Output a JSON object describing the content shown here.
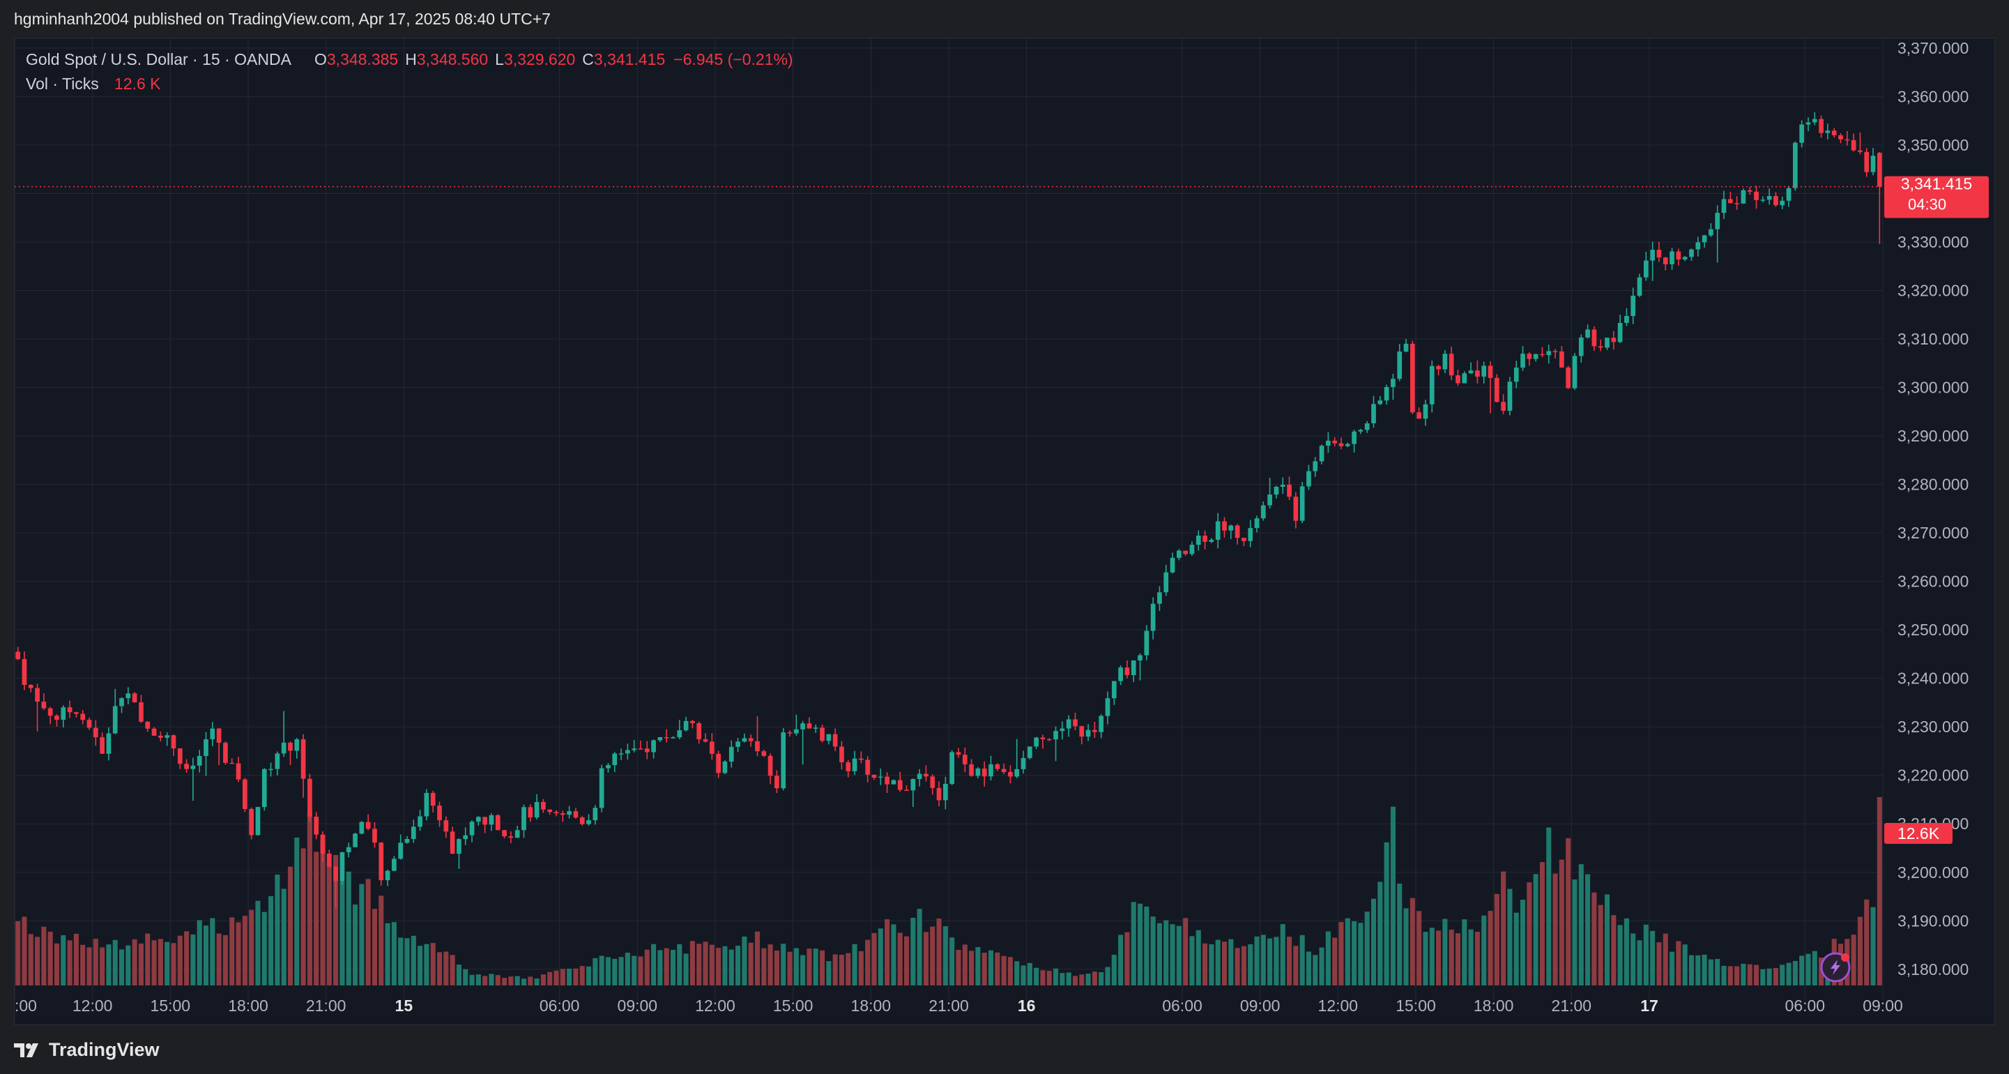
{
  "header": {
    "published_text": "hgminhanh2004 published on TradingView.com, Apr 17, 2025 08:40 UTC+7"
  },
  "legend": {
    "symbol": "Gold Spot / U.S. Dollar · 15 · OANDA",
    "o_label": "O",
    "o_value": "3,348.385",
    "h_label": "H",
    "h_value": "3,348.560",
    "l_label": "L",
    "l_value": "3,329.620",
    "c_label": "C",
    "c_value": "3,341.415",
    "change": "−6.945 (−0.21%)",
    "vol_label": "Vol · Ticks",
    "vol_value": "12.6 K"
  },
  "price_badge": {
    "price": "3,341.415",
    "countdown": "04:30"
  },
  "volume_badge": "12.6K",
  "footer": {
    "brand": "TradingView"
  },
  "colors": {
    "up": "#22ab94",
    "down": "#f23645",
    "up_volume": "#1f7a6c",
    "down_volume": "#8e3b41",
    "background": "#141823",
    "grid": "#252935"
  },
  "chart_data": {
    "type": "candlestick",
    "title": "Gold Spot / U.S. Dollar · 15 · OANDA",
    "interval": "15",
    "y_ticks": [
      3180,
      3190,
      3200,
      3210,
      3220,
      3230,
      3240,
      3250,
      3260,
      3270,
      3280,
      3290,
      3300,
      3310,
      3320,
      3330,
      3340,
      3350,
      3360,
      3370
    ],
    "y_tick_labels": [
      "3,180.000",
      "3,190.000",
      "3,200.000",
      "3,210.000",
      "3,220.000",
      "3,230.000",
      "3,240.000",
      "3,250.000",
      "3,260.000",
      "3,270.000",
      "3,280.000",
      "3,290.000",
      "3,300.000",
      "3,310.000",
      "3,320.000",
      "3,330.000",
      "",
      "3,350.000",
      "3,360.000",
      "3,370.000"
    ],
    "ylim": [
      3173.5,
      3372
    ],
    "xlim": [
      0,
      287
    ],
    "x_ticks": [
      {
        "bar": 0,
        "label": ":00",
        "bold": false
      },
      {
        "bar": 12,
        "label": "12:00",
        "bold": false
      },
      {
        "bar": 24,
        "label": "15:00",
        "bold": false
      },
      {
        "bar": 36,
        "label": "18:00",
        "bold": false
      },
      {
        "bar": 48,
        "label": "21:00",
        "bold": false
      },
      {
        "bar": 60,
        "label": "15",
        "bold": true
      },
      {
        "bar": 84,
        "label": "06:00",
        "bold": false
      },
      {
        "bar": 96,
        "label": "09:00",
        "bold": false
      },
      {
        "bar": 108,
        "label": "12:00",
        "bold": false
      },
      {
        "bar": 120,
        "label": "15:00",
        "bold": false
      },
      {
        "bar": 132,
        "label": "18:00",
        "bold": false
      },
      {
        "bar": 144,
        "label": "21:00",
        "bold": false
      },
      {
        "bar": 156,
        "label": "16",
        "bold": true
      },
      {
        "bar": 180,
        "label": "06:00",
        "bold": false
      },
      {
        "bar": 192,
        "label": "09:00",
        "bold": false
      },
      {
        "bar": 204,
        "label": "12:00",
        "bold": false
      },
      {
        "bar": 216,
        "label": "15:00",
        "bold": false
      },
      {
        "bar": 228,
        "label": "18:00",
        "bold": false
      },
      {
        "bar": 240,
        "label": "21:00",
        "bold": false
      },
      {
        "bar": 252,
        "label": "17",
        "bold": true
      },
      {
        "bar": 276,
        "label": "06:00",
        "bold": false
      },
      {
        "bar": 288,
        "label": "09:00",
        "bold": false
      }
    ],
    "last_price": 3341.415,
    "volume_max_ticks": 12600,
    "close_path": [
      [
        0,
        3244
      ],
      [
        1,
        3240
      ],
      [
        3,
        3235
      ],
      [
        6,
        3232
      ],
      [
        9,
        3234
      ],
      [
        11,
        3230
      ],
      [
        13,
        3224
      ],
      [
        15,
        3234
      ],
      [
        17,
        3238
      ],
      [
        19,
        3230
      ],
      [
        22,
        3229
      ],
      [
        24,
        3226
      ],
      [
        26,
        3220
      ],
      [
        28,
        3224
      ],
      [
        30,
        3230
      ],
      [
        32,
        3222
      ],
      [
        34,
        3220
      ],
      [
        35,
        3212
      ],
      [
        36,
        3209
      ],
      [
        37,
        3214
      ],
      [
        38,
        3220
      ],
      [
        40,
        3225
      ],
      [
        42,
        3226
      ],
      [
        43,
        3228
      ],
      [
        44,
        3220
      ],
      [
        45,
        3212
      ],
      [
        46,
        3207
      ],
      [
        47,
        3205
      ],
      [
        48,
        3200
      ],
      [
        49,
        3199
      ],
      [
        50,
        3204
      ],
      [
        51,
        3206
      ],
      [
        52,
        3208
      ],
      [
        53,
        3210
      ],
      [
        55,
        3205
      ],
      [
        56,
        3198
      ],
      [
        57,
        3200
      ],
      [
        58,
        3204
      ],
      [
        60,
        3208
      ],
      [
        62,
        3212
      ],
      [
        63,
        3216
      ],
      [
        64,
        3214
      ],
      [
        66,
        3210
      ],
      [
        67,
        3204
      ],
      [
        69,
        3208
      ],
      [
        71,
        3211
      ],
      [
        74,
        3210
      ],
      [
        76,
        3208
      ],
      [
        78,
        3212
      ],
      [
        80,
        3213
      ],
      [
        82,
        3211
      ],
      [
        85,
        3212
      ],
      [
        87,
        3211
      ],
      [
        89,
        3213
      ],
      [
        90,
        3220
      ],
      [
        92,
        3224
      ],
      [
        95,
        3224
      ],
      [
        97,
        3226
      ],
      [
        100,
        3228
      ],
      [
        102,
        3229
      ],
      [
        104,
        3231
      ],
      [
        106,
        3226
      ],
      [
        108,
        3222
      ],
      [
        110,
        3225
      ],
      [
        112,
        3227
      ],
      [
        114,
        3225
      ],
      [
        116,
        3220
      ],
      [
        117,
        3218
      ],
      [
        118,
        3228
      ],
      [
        120,
        3231
      ],
      [
        122,
        3229
      ],
      [
        124,
        3228
      ],
      [
        126,
        3226
      ],
      [
        128,
        3222
      ],
      [
        130,
        3222
      ],
      [
        132,
        3220
      ],
      [
        134,
        3219
      ],
      [
        136,
        3218
      ],
      [
        138,
        3218
      ],
      [
        140,
        3220
      ],
      [
        141,
        3216
      ],
      [
        142,
        3214
      ],
      [
        143,
        3219
      ],
      [
        144,
        3224
      ],
      [
        146,
        3222
      ],
      [
        148,
        3220
      ],
      [
        150,
        3221
      ],
      [
        152,
        3220
      ],
      [
        154,
        3222
      ],
      [
        156,
        3226
      ],
      [
        158,
        3229
      ],
      [
        160,
        3228
      ],
      [
        162,
        3230
      ],
      [
        164,
        3229
      ],
      [
        166,
        3228
      ],
      [
        168,
        3236
      ],
      [
        170,
        3241
      ],
      [
        172,
        3243
      ],
      [
        174,
        3249
      ],
      [
        176,
        3259
      ],
      [
        178,
        3264
      ],
      [
        180,
        3266
      ],
      [
        182,
        3269
      ],
      [
        184,
        3270
      ],
      [
        186,
        3272
      ],
      [
        188,
        3270
      ],
      [
        189,
        3267
      ],
      [
        190,
        3272
      ],
      [
        192,
        3275
      ],
      [
        194,
        3280
      ],
      [
        196,
        3278
      ],
      [
        197,
        3272
      ],
      [
        198,
        3280
      ],
      [
        200,
        3286
      ],
      [
        202,
        3288
      ],
      [
        204,
        3289
      ],
      [
        206,
        3290
      ],
      [
        208,
        3293
      ],
      [
        210,
        3297
      ],
      [
        212,
        3303
      ],
      [
        214,
        3310
      ],
      [
        215,
        3296
      ],
      [
        216,
        3292
      ],
      [
        218,
        3304
      ],
      [
        220,
        3306
      ],
      [
        222,
        3302
      ],
      [
        224,
        3304
      ],
      [
        226,
        3303
      ],
      [
        228,
        3298
      ],
      [
        229,
        3294
      ],
      [
        230,
        3300
      ],
      [
        232,
        3308
      ],
      [
        234,
        3306
      ],
      [
        236,
        3308
      ],
      [
        238,
        3304
      ],
      [
        239,
        3300
      ],
      [
        240,
        3308
      ],
      [
        242,
        3312
      ],
      [
        244,
        3308
      ],
      [
        246,
        3310
      ],
      [
        248,
        3316
      ],
      [
        250,
        3324
      ],
      [
        252,
        3330
      ],
      [
        254,
        3326
      ],
      [
        256,
        3328
      ],
      [
        258,
        3328
      ],
      [
        260,
        3330
      ],
      [
        262,
        3336
      ],
      [
        264,
        3339
      ],
      [
        266,
        3340
      ],
      [
        268,
        3340
      ],
      [
        270,
        3338
      ],
      [
        272,
        3340
      ],
      [
        273,
        3342
      ],
      [
        274,
        3349
      ],
      [
        275,
        3354
      ],
      [
        276,
        3355
      ],
      [
        278,
        3354
      ],
      [
        280,
        3352
      ],
      [
        282,
        3351
      ],
      [
        283,
        3350
      ],
      [
        284,
        3348
      ],
      [
        285,
        3346
      ],
      [
        286,
        3349
      ],
      [
        287,
        3341.4
      ]
    ],
    "volume_path": [
      [
        0,
        0.34
      ],
      [
        10,
        0.22
      ],
      [
        25,
        0.26
      ],
      [
        35,
        0.36
      ],
      [
        40,
        0.56
      ],
      [
        44,
        0.78
      ],
      [
        46,
        0.85
      ],
      [
        50,
        0.6
      ],
      [
        55,
        0.44
      ],
      [
        60,
        0.26
      ],
      [
        66,
        0.18
      ],
      [
        70,
        0.06
      ],
      [
        80,
        0.04
      ],
      [
        88,
        0.12
      ],
      [
        100,
        0.21
      ],
      [
        110,
        0.19
      ],
      [
        112,
        0.27
      ],
      [
        120,
        0.2
      ],
      [
        126,
        0.14
      ],
      [
        131,
        0.22
      ],
      [
        134,
        0.3
      ],
      [
        138,
        0.33
      ],
      [
        141,
        0.36
      ],
      [
        144,
        0.25
      ],
      [
        150,
        0.16
      ],
      [
        156,
        0.11
      ],
      [
        163,
        0.06
      ],
      [
        168,
        0.09
      ],
      [
        170,
        0.23
      ],
      [
        172,
        0.42
      ],
      [
        176,
        0.4
      ],
      [
        180,
        0.3
      ],
      [
        186,
        0.21
      ],
      [
        192,
        0.25
      ],
      [
        196,
        0.28
      ],
      [
        200,
        0.18
      ],
      [
        204,
        0.3
      ],
      [
        208,
        0.42
      ],
      [
        211,
        0.66
      ],
      [
        212,
        0.88
      ],
      [
        213,
        0.52
      ],
      [
        218,
        0.29
      ],
      [
        222,
        0.3
      ],
      [
        226,
        0.36
      ],
      [
        229,
        0.52
      ],
      [
        232,
        0.41
      ],
      [
        234,
        0.56
      ],
      [
        236,
        0.72
      ],
      [
        238,
        0.74
      ],
      [
        240,
        0.6
      ],
      [
        244,
        0.44
      ],
      [
        248,
        0.32
      ],
      [
        252,
        0.26
      ],
      [
        256,
        0.2
      ],
      [
        260,
        0.15
      ],
      [
        264,
        0.12
      ],
      [
        268,
        0.1
      ],
      [
        272,
        0.11
      ],
      [
        276,
        0.15
      ],
      [
        280,
        0.21
      ],
      [
        283,
        0.33
      ],
      [
        285,
        0.42
      ],
      [
        286,
        0.36
      ],
      [
        287,
        1.0
      ]
    ]
  }
}
